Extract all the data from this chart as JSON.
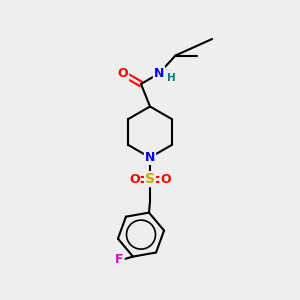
{
  "background_color": "#eeeeee",
  "atom_colors": {
    "C": "#000000",
    "N": "#0000ee",
    "O": "#ff0000",
    "S": "#ccaa00",
    "F": "#dd00dd",
    "H": "#008080"
  },
  "bond_color": "#000000",
  "bond_width": 1.5,
  "figsize": [
    3.0,
    3.0
  ],
  "dpi": 100
}
